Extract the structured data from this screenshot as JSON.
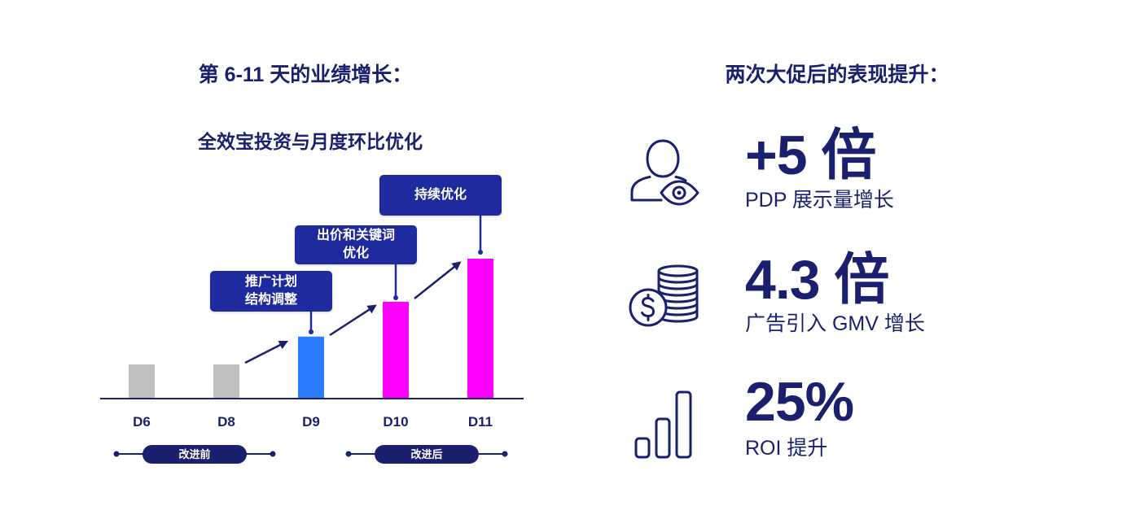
{
  "left_panel": {
    "title": "第 6-11 天的业绩增长："
  },
  "chart_data": {
    "type": "bar",
    "title": "全效宝投资与月度环比优化",
    "xlabel": "",
    "ylabel": "",
    "grid": false,
    "categories": [
      "D6",
      "D8",
      "D9",
      "D10",
      "D11"
    ],
    "values": [
      0.24,
      0.24,
      0.44,
      0.69,
      1.0
    ],
    "ylim": [
      0,
      1
    ],
    "colors": [
      "#bfbfbf",
      "#bfbfbf",
      "#2b7bff",
      "#ff00ff",
      "#ff00ff"
    ],
    "annotations": [
      {
        "lines": [
          "推广计划",
          "结构调整"
        ]
      },
      {
        "lines": [
          "出价和关键词",
          "优化"
        ]
      },
      {
        "lines": [
          "持续优化"
        ]
      }
    ],
    "groups": [
      {
        "label": "改进前"
      },
      {
        "label": "改进后"
      }
    ]
  },
  "right_panel": {
    "title": "两次大促后的表现提升：",
    "stats": [
      {
        "icon": "person-eye-icon",
        "value": "+5 倍",
        "label": "PDP 展示量增长"
      },
      {
        "icon": "coins-dollar-icon",
        "value": "4.3 倍",
        "label": "广告引入 GMV 增长"
      },
      {
        "icon": "bar-chart-icon",
        "value": "25%",
        "label": "ROI 提升"
      }
    ]
  },
  "colors": {
    "navy": "#1a1f6e",
    "callout": "#1e2a9e",
    "background": "#ffffff"
  }
}
